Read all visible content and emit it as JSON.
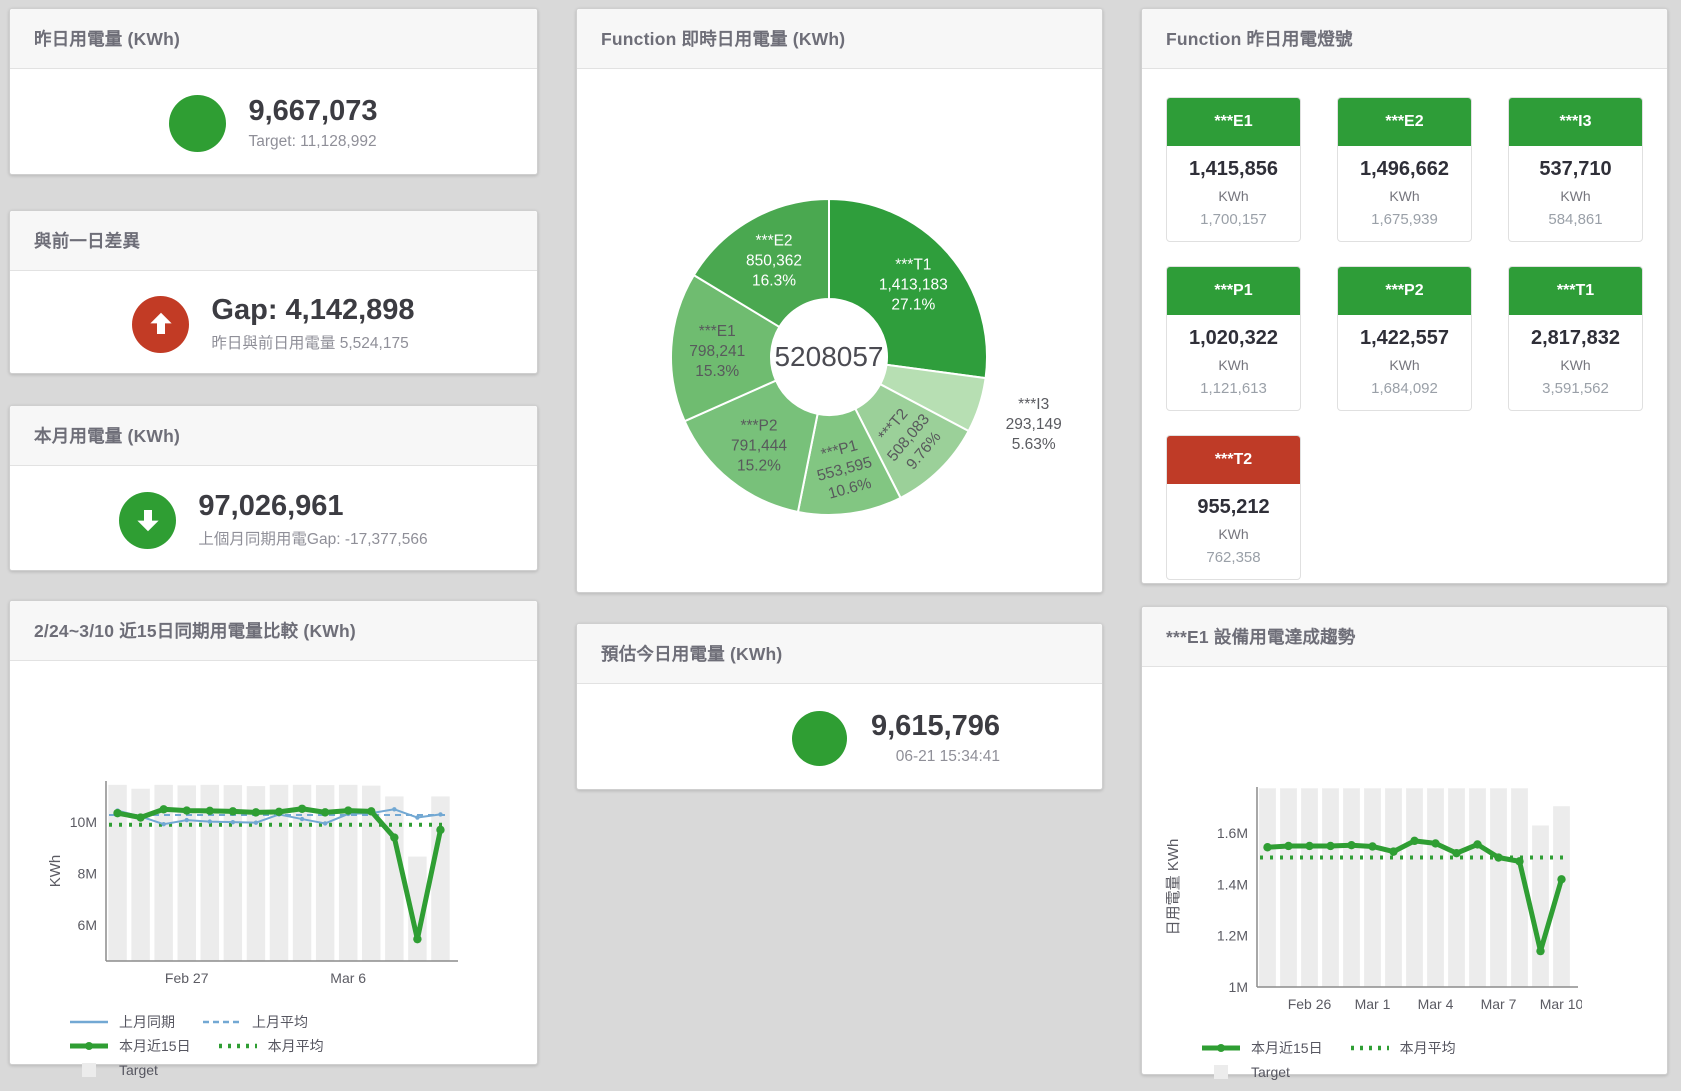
{
  "colors": {
    "green": "#2f9e33",
    "red": "#c23b25",
    "blue": "#72a8d3",
    "target_bar": "#ececec"
  },
  "kpi_cards": [
    {
      "title": "昨日用電量 (KWh)",
      "icon": "solid-circle",
      "value": "9,667,073",
      "sub": "Target: 11,128,992",
      "color": "#2f9e33"
    },
    {
      "title": "與前一日差異",
      "icon": "arrow-up",
      "value": "Gap: 4,142,898",
      "sub": "昨日與前日用電量 5,524,175",
      "color": "#c23b25"
    },
    {
      "title": "本月用電量 (KWh)",
      "icon": "arrow-down",
      "value": "97,026,961",
      "sub": "上個月同期用電Gap: -17,377,566",
      "color": "#2f9e33"
    }
  ],
  "estimate_card": {
    "title": "預估今日用電量 (KWh)",
    "icon": "solid-circle",
    "value": "9,615,796",
    "timestamp": "06-21 15:34:41",
    "color": "#2f9e33"
  },
  "lights_card": {
    "title": "Function 昨日用電燈號",
    "unit": "KWh",
    "tiles": [
      {
        "name": "***E1",
        "value": "1,415,856",
        "target": "1,700,157",
        "status": "green",
        "header_color": "#2e9d38"
      },
      {
        "name": "***E2",
        "value": "1,496,662",
        "target": "1,675,939",
        "status": "green",
        "header_color": "#2e9d38"
      },
      {
        "name": "***I3",
        "value": "537,710",
        "target": "584,861",
        "status": "green",
        "header_color": "#2e9d38"
      },
      {
        "name": "***P1",
        "value": "1,020,322",
        "target": "1,121,613",
        "status": "green",
        "header_color": "#2e9d38"
      },
      {
        "name": "***P2",
        "value": "1,422,557",
        "target": "1,684,092",
        "status": "green",
        "header_color": "#2e9d38"
      },
      {
        "name": "***T1",
        "value": "2,817,832",
        "target": "3,591,562",
        "status": "green",
        "header_color": "#2e9d38"
      },
      {
        "name": "***T2",
        "value": "955,212",
        "target": "762,358",
        "status": "red",
        "header_color": "#bf3b27"
      }
    ]
  },
  "chart_data": [
    {
      "type": "pie",
      "title": "Function 即時日用電量 (KWh)",
      "center_total": "5208057",
      "slices": [
        {
          "name": "***T1",
          "value": 1413183,
          "value_label": "1,413,183",
          "pct_label": "27.1%",
          "color": "#2f9e3c",
          "text_color": "#ffffff",
          "label": "inside",
          "rotate": 0
        },
        {
          "name": "***I3",
          "value": 293149,
          "value_label": "293,149",
          "pct_label": "5.63%",
          "color": "#b7dfb3",
          "text_color": "#5a5b60",
          "label": "outside",
          "rotate": 0
        },
        {
          "name": "***T2",
          "value": 508083,
          "value_label": "508,083",
          "pct_label": "9.76%",
          "color": "#9bd099",
          "text_color": "#58595c",
          "label": "inside",
          "rotate": -50
        },
        {
          "name": "***P1",
          "value": 553595,
          "value_label": "553,595",
          "pct_label": "10.6%",
          "color": "#82c682",
          "text_color": "#58595c",
          "label": "inside",
          "rotate": -15
        },
        {
          "name": "***P2",
          "value": 791444,
          "value_label": "791,444",
          "pct_label": "15.2%",
          "color": "#78c17a",
          "text_color": "#58595c",
          "label": "inside",
          "rotate": 0
        },
        {
          "name": "***E1",
          "value": 798241,
          "value_label": "798,241",
          "pct_label": "15.3%",
          "color": "#6fbc70",
          "text_color": "#58595c",
          "label": "inside",
          "rotate": 0
        },
        {
          "name": "***E2",
          "value": 850362,
          "value_label": "850,362",
          "pct_label": "16.3%",
          "color": "#4aa850",
          "text_color": "#ffffff",
          "label": "inside",
          "rotate": 0
        }
      ]
    },
    {
      "type": "bar+line",
      "title": "2/24~3/10 近15日同期用電量比較 (KWh)",
      "ylabel": "KWh",
      "ylim": [
        4600000,
        11600000
      ],
      "yticks": [
        {
          "v": 6000000,
          "t": "6M"
        },
        {
          "v": 8000000,
          "t": "8M"
        },
        {
          "v": 10000000,
          "t": "10M"
        }
      ],
      "categories": [
        "2/24",
        "2/25",
        "2/26",
        "2/27",
        "2/28",
        "3/1",
        "3/2",
        "3/3",
        "3/4",
        "3/5",
        "3/6",
        "3/7",
        "3/8",
        "3/9",
        "3/10"
      ],
      "xticks": [
        {
          "i": 3,
          "t": "Feb 27"
        },
        {
          "i": 10,
          "t": "Mar 6"
        }
      ],
      "target": {
        "name": "Target",
        "color": "#ececec",
        "values": [
          11450000,
          11300000,
          11450000,
          11430000,
          11450000,
          11440000,
          11400000,
          11450000,
          11450000,
          11440000,
          11450000,
          11420000,
          11000000,
          8660000,
          11000000
        ]
      },
      "series": [
        {
          "name": "上月同期",
          "color": "#72a8d3",
          "width": 2,
          "marker": 2.2,
          "values": [
            10450000,
            10220000,
            9920000,
            10080000,
            10020000,
            10000000,
            9980000,
            10300000,
            10120000,
            9950000,
            10320000,
            10350000,
            10500000,
            10180000,
            10300000
          ]
        },
        {
          "name": "本月近15日",
          "color": "#2f9e33",
          "width": 5,
          "marker": 4.2,
          "values": [
            10350000,
            10180000,
            10500000,
            10450000,
            10440000,
            10420000,
            10380000,
            10400000,
            10520000,
            10380000,
            10450000,
            10420000,
            9400000,
            5450000,
            9700000
          ]
        }
      ],
      "hlines": [
        {
          "name": "上月平均",
          "color": "#72a8d3",
          "width": 2,
          "dash": "6 5",
          "value": 10280000
        },
        {
          "name": "本月平均",
          "color": "#2f9e33",
          "width": 4,
          "dash": "3 7",
          "value": 9900000
        }
      ],
      "legend_rows": [
        [
          {
            "sw": "line",
            "c": "#72a8d3",
            "t": "上月同期"
          },
          {
            "sw": "dash",
            "c": "#72a8d3",
            "t": "上月平均"
          }
        ],
        [
          {
            "sw": "thick",
            "c": "#2f9e33",
            "t": "本月近15日"
          },
          {
            "sw": "dots",
            "c": "#2f9e33",
            "t": "本月平均"
          }
        ],
        [
          {
            "sw": "sq",
            "c": "#ececec",
            "t": "Target"
          }
        ]
      ]
    },
    {
      "type": "bar+line",
      "title": "***E1 設備用電達成趨勢",
      "ylabel": "日用電量 KWh",
      "ylim": [
        1000000,
        1780000
      ],
      "yticks": [
        {
          "v": 1000000,
          "t": "1M"
        },
        {
          "v": 1200000,
          "t": "1.2M"
        },
        {
          "v": 1400000,
          "t": "1.4M"
        },
        {
          "v": 1600000,
          "t": "1.6M"
        }
      ],
      "categories": [
        "2/24",
        "2/25",
        "2/26",
        "2/27",
        "2/28",
        "3/1",
        "3/2",
        "3/3",
        "3/4",
        "3/5",
        "3/6",
        "3/7",
        "3/8",
        "3/9",
        "3/10"
      ],
      "xticks": [
        {
          "i": 2,
          "t": "Feb 26"
        },
        {
          "i": 5,
          "t": "Mar 1"
        },
        {
          "i": 8,
          "t": "Mar 4"
        },
        {
          "i": 11,
          "t": "Mar 7"
        },
        {
          "i": 14,
          "t": "Mar 10"
        }
      ],
      "target": {
        "name": "Target",
        "color": "#ececec",
        "values": [
          1775000,
          1775000,
          1775000,
          1775000,
          1775000,
          1775000,
          1775000,
          1775000,
          1775000,
          1775000,
          1775000,
          1775000,
          1775000,
          1630000,
          1705000
        ]
      },
      "series": [
        {
          "name": "本月近15日",
          "color": "#2f9e33",
          "width": 5,
          "marker": 4.2,
          "values": [
            1545000,
            1550000,
            1550000,
            1550000,
            1553000,
            1548000,
            1528000,
            1570000,
            1560000,
            1522000,
            1556000,
            1505000,
            1490000,
            1140000,
            1420000
          ]
        }
      ],
      "hlines": [
        {
          "name": "本月平均",
          "color": "#2f9e33",
          "width": 4,
          "dash": "3 7",
          "value": 1505000
        }
      ],
      "legend_rows": [
        [
          {
            "sw": "thick",
            "c": "#2f9e33",
            "t": "本月近15日"
          },
          {
            "sw": "dots",
            "c": "#2f9e33",
            "t": "本月平均"
          }
        ],
        [
          {
            "sw": "sq",
            "c": "#ececec",
            "t": "Target"
          }
        ]
      ]
    }
  ]
}
